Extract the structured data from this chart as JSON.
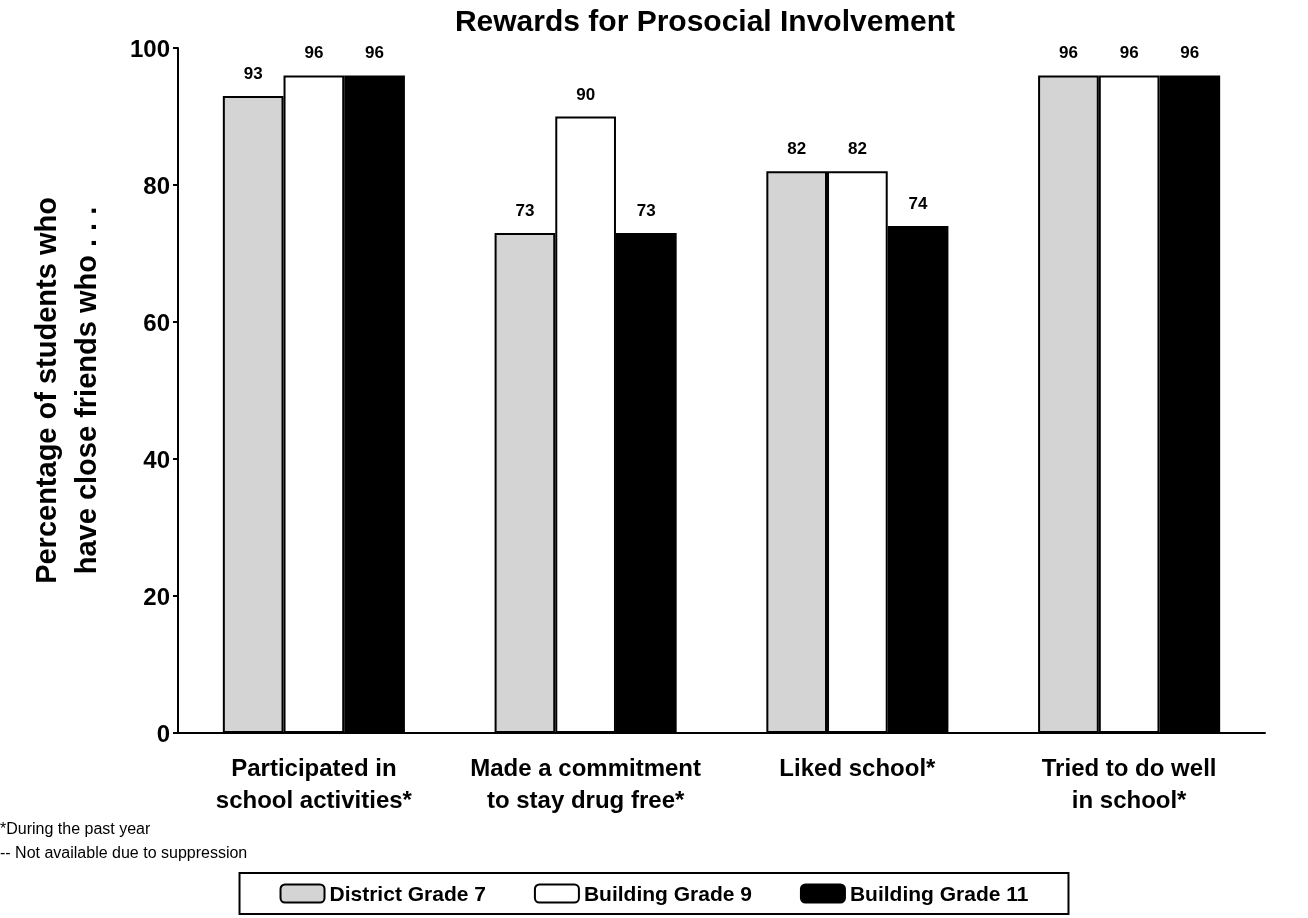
{
  "chart_data": {
    "type": "bar",
    "title": "Rewards for Prosocial Involvement",
    "ylabel": "Percentage of students who\nhave close friends who . . .",
    "categories": [
      "Participated in\nschool activities*",
      "Made a commitment\nto stay drug free*",
      "Liked school*",
      "Tried to do well\nin school*"
    ],
    "series": [
      {
        "name": "District Grade 7",
        "color": "#d4d4d4",
        "values": [
          93,
          73,
          82,
          96
        ]
      },
      {
        "name": "Building Grade 9",
        "color": "#ffffff",
        "values": [
          96,
          90,
          82,
          96
        ]
      },
      {
        "name": "Building Grade 11",
        "color": "#000000",
        "values": [
          96,
          73,
          74,
          96
        ]
      }
    ],
    "ylim": [
      0,
      100
    ],
    "yticks": [
      0,
      20,
      40,
      60,
      80,
      100
    ],
    "grid": false,
    "data_labels": true,
    "legend": "bottom",
    "annotations": [
      "*During the past year",
      "-- Not available due to suppression"
    ]
  }
}
